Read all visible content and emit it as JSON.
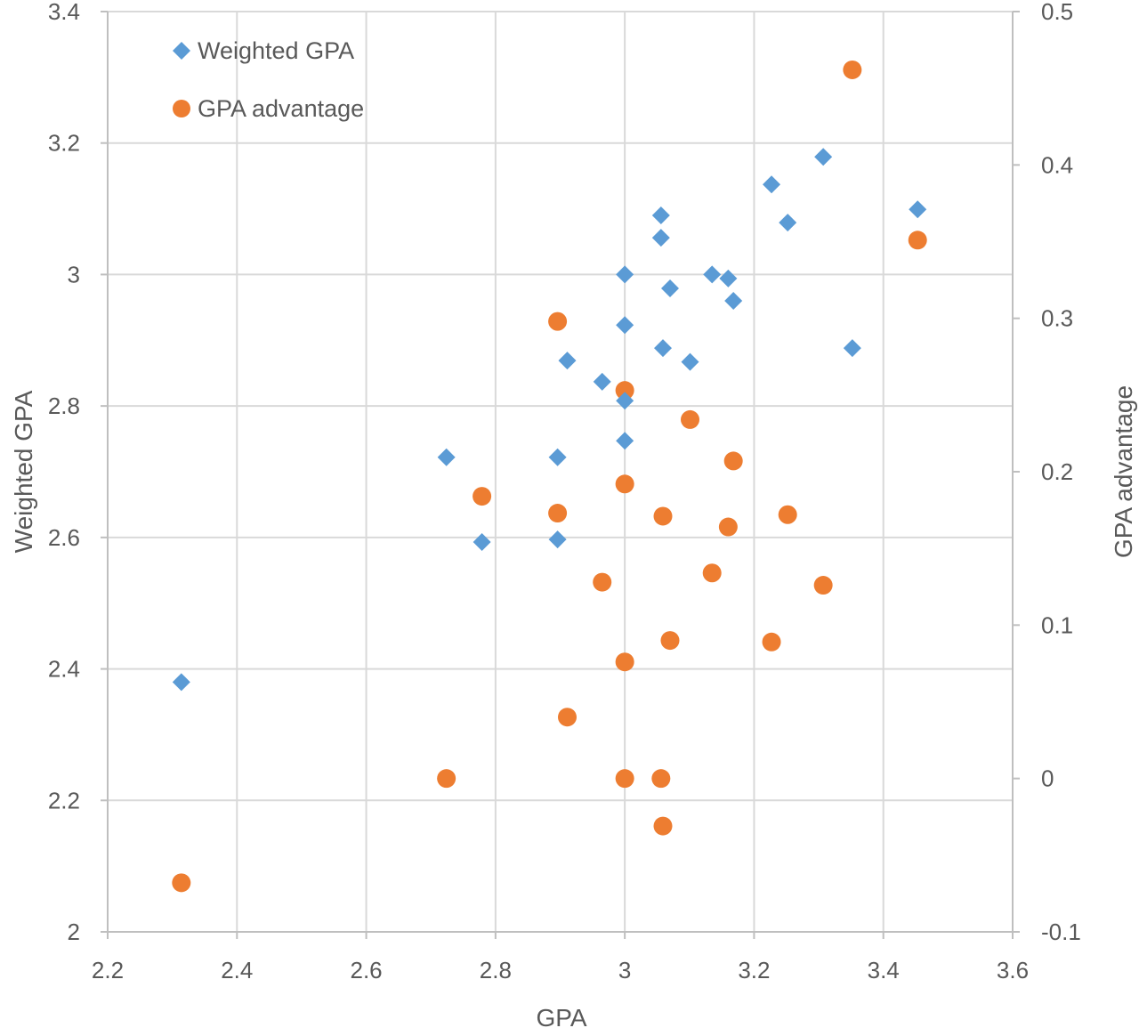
{
  "chart_data": {
    "type": "scatter",
    "title": "",
    "xlabel": "GPA",
    "ylabel": "Weighted GPA",
    "y2label": "GPA advantage",
    "xlim": [
      2.2,
      3.6
    ],
    "ylim": [
      2,
      3.4
    ],
    "y2lim": [
      -0.1,
      0.5
    ],
    "xticks": [
      "2.2",
      "2.4",
      "2.6",
      "2.8",
      "3",
      "3.2",
      "3.4",
      "3.6"
    ],
    "yticks": [
      "2",
      "2.2",
      "2.4",
      "2.6",
      "2.8",
      "3",
      "3.2",
      "3.4"
    ],
    "y2ticks": [
      "-0.1",
      "0",
      "0.1",
      "0.2",
      "0.3",
      "0.4",
      "0.5"
    ],
    "grid": true,
    "legend_position": "top-left",
    "series": [
      {
        "name": "Weighted GPA",
        "axis": "left",
        "marker": "diamond",
        "color": "#5B9BD5",
        "points": [
          [
            2.314,
            2.38
          ],
          [
            2.724,
            2.722
          ],
          [
            2.779,
            2.593
          ],
          [
            2.896,
            2.722
          ],
          [
            2.896,
            2.597
          ],
          [
            2.911,
            2.869
          ],
          [
            2.965,
            2.837
          ],
          [
            3.0,
            3.0
          ],
          [
            3.0,
            2.923
          ],
          [
            3.0,
            2.808
          ],
          [
            3.0,
            2.747
          ],
          [
            3.056,
            3.09
          ],
          [
            3.056,
            3.056
          ],
          [
            3.059,
            2.888
          ],
          [
            3.07,
            2.979
          ],
          [
            3.101,
            2.867
          ],
          [
            3.135,
            3.0
          ],
          [
            3.16,
            2.994
          ],
          [
            3.168,
            2.96
          ],
          [
            3.227,
            3.137
          ],
          [
            3.252,
            3.079
          ],
          [
            3.307,
            3.179
          ],
          [
            3.352,
            2.888
          ],
          [
            3.453,
            3.099
          ]
        ]
      },
      {
        "name": "GPA advantage",
        "axis": "right",
        "marker": "circle",
        "color": "#ED7D31",
        "points": [
          [
            2.314,
            -0.068
          ],
          [
            2.724,
            0.0
          ],
          [
            2.779,
            0.184
          ],
          [
            2.896,
            0.298
          ],
          [
            2.896,
            0.173
          ],
          [
            2.911,
            0.04
          ],
          [
            2.965,
            0.128
          ],
          [
            3.0,
            0.253
          ],
          [
            3.0,
            0.192
          ],
          [
            3.0,
            0.076
          ],
          [
            3.0,
            0.0
          ],
          [
            3.056,
            0.0
          ],
          [
            3.059,
            -0.031
          ],
          [
            3.059,
            0.171
          ],
          [
            3.07,
            0.09
          ],
          [
            3.101,
            0.234
          ],
          [
            3.135,
            0.134
          ],
          [
            3.16,
            0.164
          ],
          [
            3.168,
            0.207
          ],
          [
            3.227,
            0.089
          ],
          [
            3.252,
            0.172
          ],
          [
            3.307,
            0.126
          ],
          [
            3.352,
            0.462
          ],
          [
            3.453,
            0.351
          ]
        ]
      }
    ]
  }
}
